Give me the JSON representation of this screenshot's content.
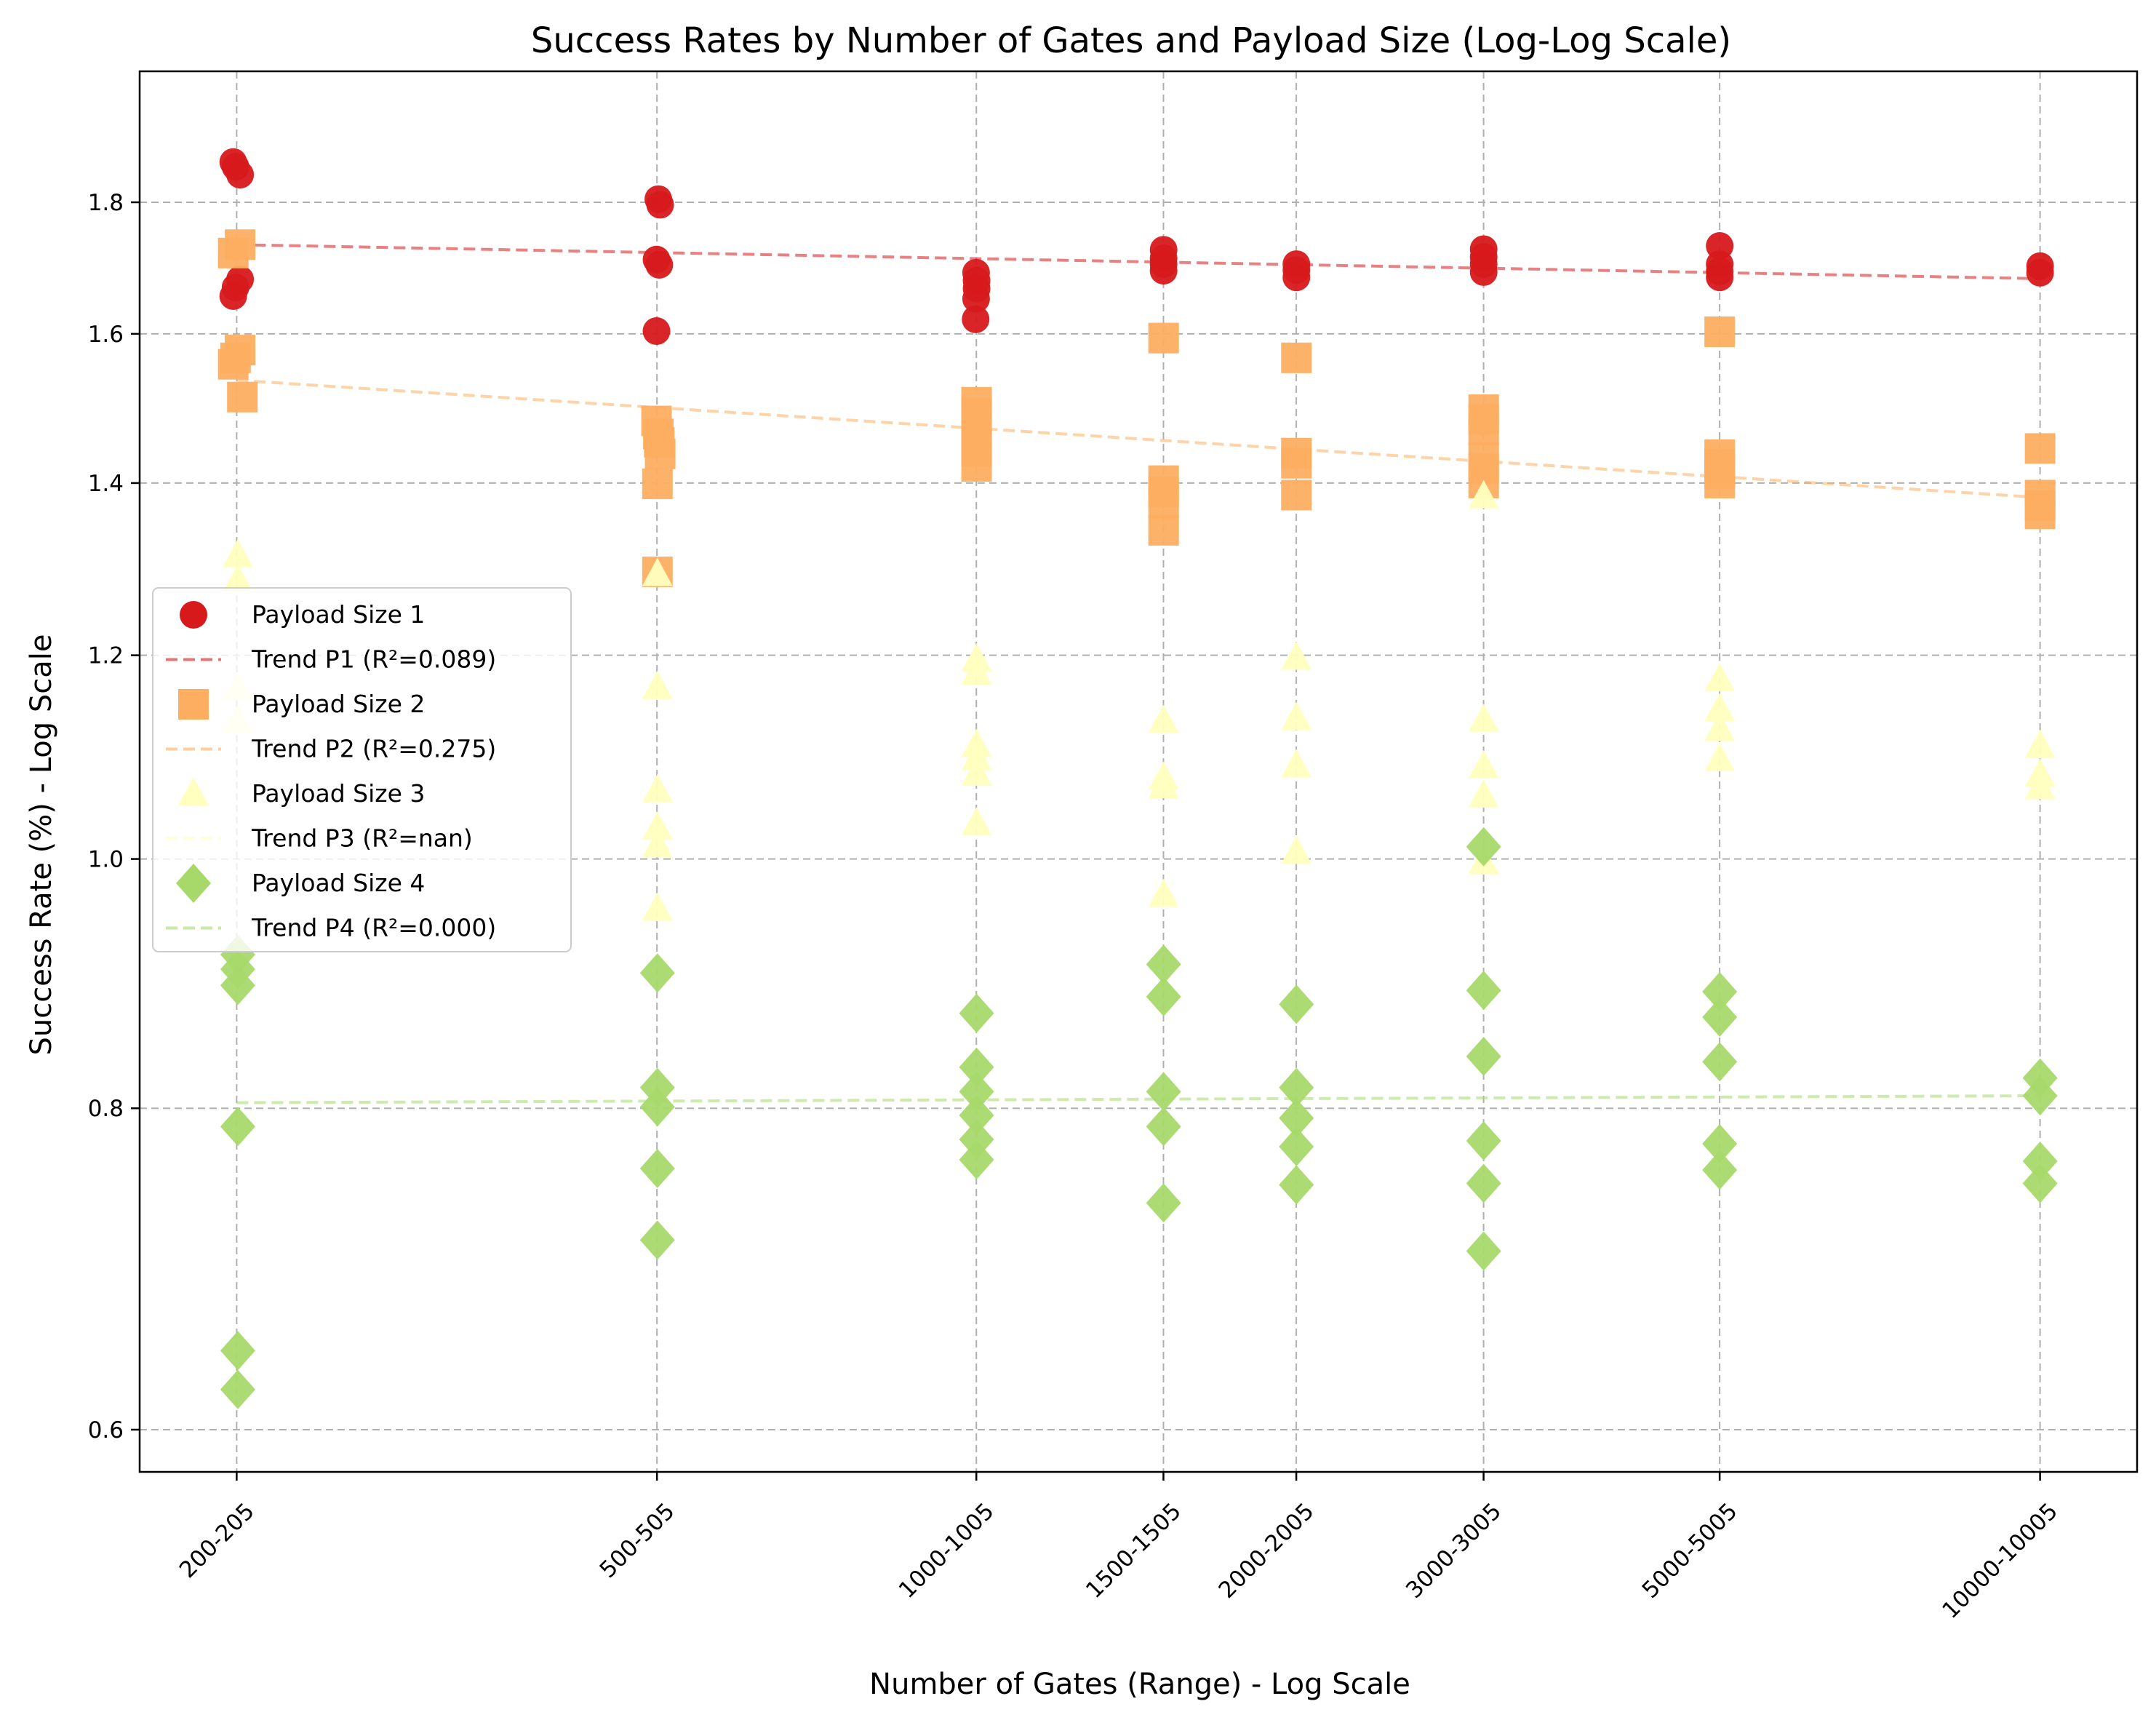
{
  "chart_data": {
    "type": "scatter",
    "title": "Success Rates by Number of Gates and Payload Size (Log-Log Scale)",
    "xlabel": "Number of Gates (Range) - Log Scale",
    "ylabel": "Success Rate (%) - Log Scale",
    "x_scale": "log",
    "y_scale": "log",
    "grid": true,
    "legend_position": "center-left",
    "x_ticks": [
      {
        "value": 202.5,
        "label": "200-205"
      },
      {
        "value": 502.5,
        "label": "500-505"
      },
      {
        "value": 1002.5,
        "label": "1000-1005"
      },
      {
        "value": 1502.5,
        "label": "1500-1505"
      },
      {
        "value": 2002.5,
        "label": "2000-2005"
      },
      {
        "value": 3002.5,
        "label": "3000-3005"
      },
      {
        "value": 5002.5,
        "label": "5000-5005"
      },
      {
        "value": 10002.5,
        "label": "10000-10005"
      }
    ],
    "y_ticks": [
      0.6,
      0.8,
      1.0,
      1.2,
      1.4,
      1.6,
      1.8
    ],
    "series": [
      {
        "name": "Payload Size 1",
        "marker": "circle",
        "color": "#d7191c",
        "points": [
          [
            201,
            1.866
          ],
          [
            202,
            1.858
          ],
          [
            204,
            1.845
          ],
          [
            201,
            1.655
          ],
          [
            202,
            1.668
          ],
          [
            204,
            1.68
          ],
          [
            504,
            1.805
          ],
          [
            506,
            1.796
          ],
          [
            502,
            1.71
          ],
          [
            505,
            1.702
          ],
          [
            502,
            1.604
          ],
          [
            1002,
            1.69
          ],
          [
            1003,
            1.678
          ],
          [
            1003,
            1.666
          ],
          [
            1002,
            1.651
          ],
          [
            1001,
            1.621
          ],
          [
            1503,
            1.725
          ],
          [
            1503,
            1.712
          ],
          [
            1503,
            1.703
          ],
          [
            1503,
            1.693
          ],
          [
            2003,
            1.703
          ],
          [
            2003,
            1.694
          ],
          [
            2003,
            1.683
          ],
          [
            3003,
            1.726
          ],
          [
            3003,
            1.714
          ],
          [
            3003,
            1.703
          ],
          [
            3003,
            1.691
          ],
          [
            5003,
            1.731
          ],
          [
            5003,
            1.703
          ],
          [
            5003,
            1.692
          ],
          [
            5003,
            1.683
          ],
          [
            10003,
            1.7
          ],
          [
            10003,
            1.69
          ]
        ],
        "trend": {
          "name": "Trend P1 (R²=0.089)",
          "y_start": 1.733,
          "y_end": 1.681
        }
      },
      {
        "name": "Payload Size 2",
        "marker": "square",
        "color": "#fdae61",
        "points": [
          [
            201,
            1.72
          ],
          [
            204,
            1.733
          ],
          [
            201,
            1.557
          ],
          [
            204,
            1.577
          ],
          [
            202,
            1.566
          ],
          [
            205,
            1.512
          ],
          [
            502,
            1.48
          ],
          [
            504,
            1.463
          ],
          [
            505,
            1.452
          ],
          [
            506,
            1.437
          ],
          [
            503,
            1.399
          ],
          [
            503,
            1.293
          ],
          [
            1003,
            1.505
          ],
          [
            1003,
            1.49
          ],
          [
            1003,
            1.475
          ],
          [
            1003,
            1.46
          ],
          [
            1003,
            1.44
          ],
          [
            1003,
            1.421
          ],
          [
            1503,
            1.594
          ],
          [
            1503,
            1.403
          ],
          [
            1503,
            1.389
          ],
          [
            1503,
            1.375
          ],
          [
            1503,
            1.342
          ],
          [
            2003,
            1.566
          ],
          [
            2003,
            1.438
          ],
          [
            2003,
            1.425
          ],
          [
            2003,
            1.385
          ],
          [
            3003,
            1.495
          ],
          [
            3003,
            1.482
          ],
          [
            3003,
            1.468
          ],
          [
            3003,
            1.432
          ],
          [
            3003,
            1.418
          ],
          [
            3003,
            1.4
          ],
          [
            5003,
            1.603
          ],
          [
            5003,
            1.436
          ],
          [
            5003,
            1.424
          ],
          [
            5003,
            1.412
          ],
          [
            5003,
            1.4
          ],
          [
            10003,
            1.444
          ],
          [
            10003,
            1.385
          ],
          [
            10003,
            1.372
          ],
          [
            10003,
            1.362
          ]
        ],
        "trend": {
          "name": "Trend P2 (R²=0.275)",
          "y_start": 1.535,
          "y_end": 1.382
        }
      },
      {
        "name": "Payload Size 3",
        "marker": "triangle",
        "color": "#ffffbf",
        "points": [
          [
            203,
            1.312
          ],
          [
            203,
            1.283
          ],
          [
            203,
            1.165
          ],
          [
            203,
            1.131
          ],
          [
            503,
            1.29
          ],
          [
            503,
            1.166
          ],
          [
            503,
            1.063
          ],
          [
            503,
            1.028
          ],
          [
            503,
            1.012
          ],
          [
            503,
            0.956
          ],
          [
            1003,
            1.195
          ],
          [
            1003,
            1.181
          ],
          [
            1003,
            1.107
          ],
          [
            1003,
            1.094
          ],
          [
            1003,
            1.079
          ],
          [
            1003,
            1.032
          ],
          [
            1503,
            1.131
          ],
          [
            1503,
            1.075
          ],
          [
            1503,
            1.067
          ],
          [
            1503,
            0.968
          ],
          [
            2003,
            1.197
          ],
          [
            2003,
            1.134
          ],
          [
            2003,
            1.087
          ],
          [
            2003,
            1.006
          ],
          [
            3003,
            1.383
          ],
          [
            3003,
            1.132
          ],
          [
            3003,
            1.086
          ],
          [
            3003,
            1.058
          ],
          [
            3003,
            0.997
          ],
          [
            5003,
            1.174
          ],
          [
            5003,
            1.143
          ],
          [
            5003,
            1.123
          ],
          [
            5003,
            1.093
          ],
          [
            10003,
            1.106
          ],
          [
            10003,
            1.078
          ],
          [
            10003,
            1.066
          ]
        ],
        "trend": {
          "name": "Trend P3 (R²=nan)"
        }
      },
      {
        "name": "Payload Size 4",
        "marker": "diamond",
        "color": "#a6d96a",
        "points": [
          [
            203,
            0.918
          ],
          [
            203,
            0.906
          ],
          [
            203,
            0.893
          ],
          [
            203,
            0.787
          ],
          [
            203,
            0.644
          ],
          [
            203,
            0.622
          ],
          [
            503,
            0.903
          ],
          [
            503,
            0.815
          ],
          [
            503,
            0.801
          ],
          [
            503,
            0.758
          ],
          [
            503,
            0.711
          ],
          [
            1003,
            0.871
          ],
          [
            1003,
            0.83
          ],
          [
            1003,
            0.812
          ],
          [
            1003,
            0.795
          ],
          [
            1003,
            0.778
          ],
          [
            1003,
            0.764
          ],
          [
            1503,
            0.91
          ],
          [
            1503,
            0.884
          ],
          [
            1503,
            0.812
          ],
          [
            1503,
            0.787
          ],
          [
            1503,
            0.735
          ],
          [
            2003,
            0.878
          ],
          [
            2003,
            0.815
          ],
          [
            2003,
            0.793
          ],
          [
            2003,
            0.773
          ],
          [
            2003,
            0.747
          ],
          [
            3003,
            1.011
          ],
          [
            3003,
            0.889
          ],
          [
            3003,
            0.838
          ],
          [
            3003,
            0.777
          ],
          [
            3003,
            0.748
          ],
          [
            3003,
            0.704
          ],
          [
            5003,
            0.888
          ],
          [
            5003,
            0.868
          ],
          [
            5003,
            0.834
          ],
          [
            5003,
            0.775
          ],
          [
            5003,
            0.757
          ],
          [
            10003,
            0.822
          ],
          [
            10003,
            0.809
          ],
          [
            10003,
            0.763
          ],
          [
            10003,
            0.748
          ]
        ],
        "trend": {
          "name": "Trend P4 (R²=0.000)",
          "y_start": 0.804,
          "y_end": 0.809
        }
      }
    ]
  }
}
